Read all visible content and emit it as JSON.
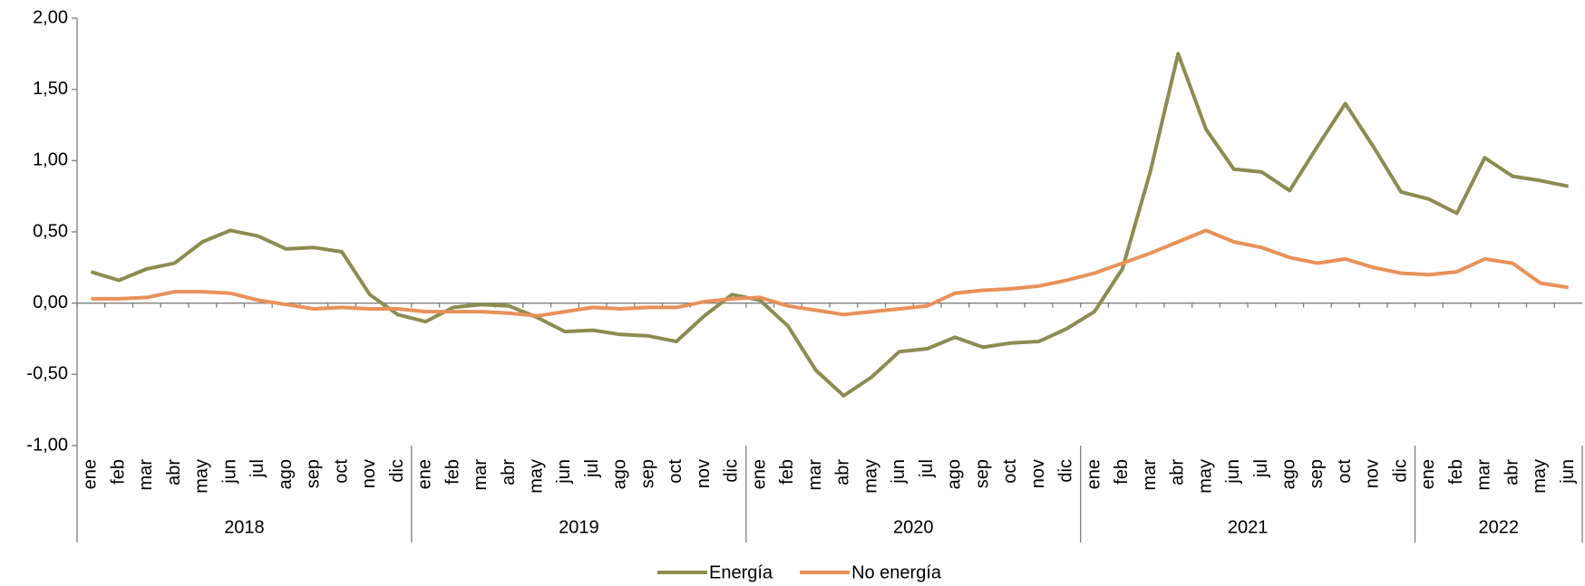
{
  "chart_data": {
    "type": "line",
    "categories": [
      "ene",
      "feb",
      "mar",
      "abr",
      "may",
      "jun",
      "jul",
      "ago",
      "sep",
      "oct",
      "nov",
      "dic",
      "ene",
      "feb",
      "mar",
      "abr",
      "may",
      "jun",
      "jul",
      "ago",
      "sep",
      "oct",
      "nov",
      "dic",
      "ene",
      "feb",
      "mar",
      "abr",
      "may",
      "jun",
      "jul",
      "ago",
      "sep",
      "oct",
      "nov",
      "dic",
      "ene",
      "feb",
      "mar",
      "abr",
      "may",
      "jun",
      "jul",
      "ago",
      "sep",
      "oct",
      "nov",
      "dic",
      "ene",
      "feb",
      "mar",
      "abr",
      "may",
      "jun"
    ],
    "years": [
      "2018",
      "2019",
      "2020",
      "2021",
      "2022"
    ],
    "series": [
      {
        "name": "Energía",
        "color": "#8c8c52",
        "values": [
          0.22,
          0.16,
          0.24,
          0.28,
          0.43,
          0.51,
          0.47,
          0.38,
          0.39,
          0.36,
          0.06,
          -0.08,
          -0.13,
          -0.03,
          -0.01,
          -0.02,
          -0.1,
          -0.2,
          -0.19,
          -0.22,
          -0.23,
          -0.27,
          -0.09,
          0.06,
          0.02,
          -0.16,
          -0.47,
          -0.65,
          -0.52,
          -0.34,
          -0.32,
          -0.24,
          -0.31,
          -0.28,
          -0.27,
          -0.18,
          -0.06,
          0.24,
          0.92,
          1.75,
          1.22,
          0.94,
          0.92,
          0.79,
          1.1,
          1.4,
          1.1,
          0.78,
          0.73,
          0.63,
          1.02,
          0.89,
          0.86,
          0.82
        ]
      },
      {
        "name": "No energía",
        "color": "#e8915a",
        "values": [
          0.03,
          0.03,
          0.04,
          0.08,
          0.08,
          0.07,
          0.02,
          -0.01,
          -0.04,
          -0.03,
          -0.04,
          -0.04,
          -0.06,
          -0.06,
          -0.06,
          -0.07,
          -0.09,
          -0.06,
          -0.03,
          -0.04,
          -0.03,
          -0.03,
          0.01,
          0.03,
          0.04,
          -0.02,
          -0.05,
          -0.08,
          -0.06,
          -0.04,
          -0.02,
          0.07,
          0.09,
          0.1,
          0.12,
          0.16,
          0.21,
          0.28,
          0.35,
          0.43,
          0.51,
          0.43,
          0.39,
          0.32,
          0.28,
          0.31,
          0.25,
          0.21,
          0.2,
          0.22,
          0.31,
          0.28,
          0.14,
          0.11
        ]
      }
    ],
    "ylim": [
      -1,
      2
    ],
    "yticks": [
      {
        "value": -1,
        "label": "-1,00"
      },
      {
        "value": -0.5,
        "label": "-0,50"
      },
      {
        "value": 0,
        "label": "0,00"
      },
      {
        "value": 0.5,
        "label": "0,50"
      },
      {
        "value": 1,
        "label": "1,00"
      },
      {
        "value": 1.5,
        "label": "1,50"
      },
      {
        "value": 2,
        "label": "2,00"
      }
    ],
    "legend": "bottom"
  }
}
